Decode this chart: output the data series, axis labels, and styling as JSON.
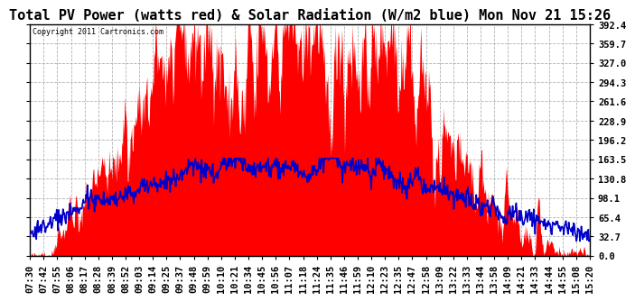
{
  "title": "Total PV Power (watts red) & Solar Radiation (W/m2 blue) Mon Nov 21 15:26",
  "copyright_text": "Copyright 2011 Cartronics.com",
  "background_color": "#ffffff",
  "yticks": [
    0.0,
    32.7,
    65.4,
    98.1,
    130.8,
    163.5,
    196.2,
    228.9,
    261.6,
    294.3,
    327.0,
    359.7,
    392.4
  ],
  "xlabels": [
    "07:30",
    "07:42",
    "07:55",
    "08:06",
    "08:17",
    "08:28",
    "08:39",
    "08:52",
    "09:03",
    "09:14",
    "09:25",
    "09:37",
    "09:48",
    "09:59",
    "10:10",
    "10:21",
    "10:34",
    "10:45",
    "10:56",
    "11:07",
    "11:18",
    "11:24",
    "11:35",
    "11:46",
    "11:59",
    "12:10",
    "12:23",
    "12:35",
    "12:47",
    "12:58",
    "13:09",
    "13:22",
    "13:33",
    "13:44",
    "13:58",
    "14:09",
    "14:21",
    "14:33",
    "14:44",
    "14:55",
    "15:08",
    "15:20"
  ],
  "pv_color": "#ff0000",
  "solar_color": "#0000cc",
  "title_fontsize": 11,
  "tick_fontsize": 7.5,
  "n_fine": 800,
  "ymax": 392.4,
  "solar_max": 155,
  "solar_base": 32
}
